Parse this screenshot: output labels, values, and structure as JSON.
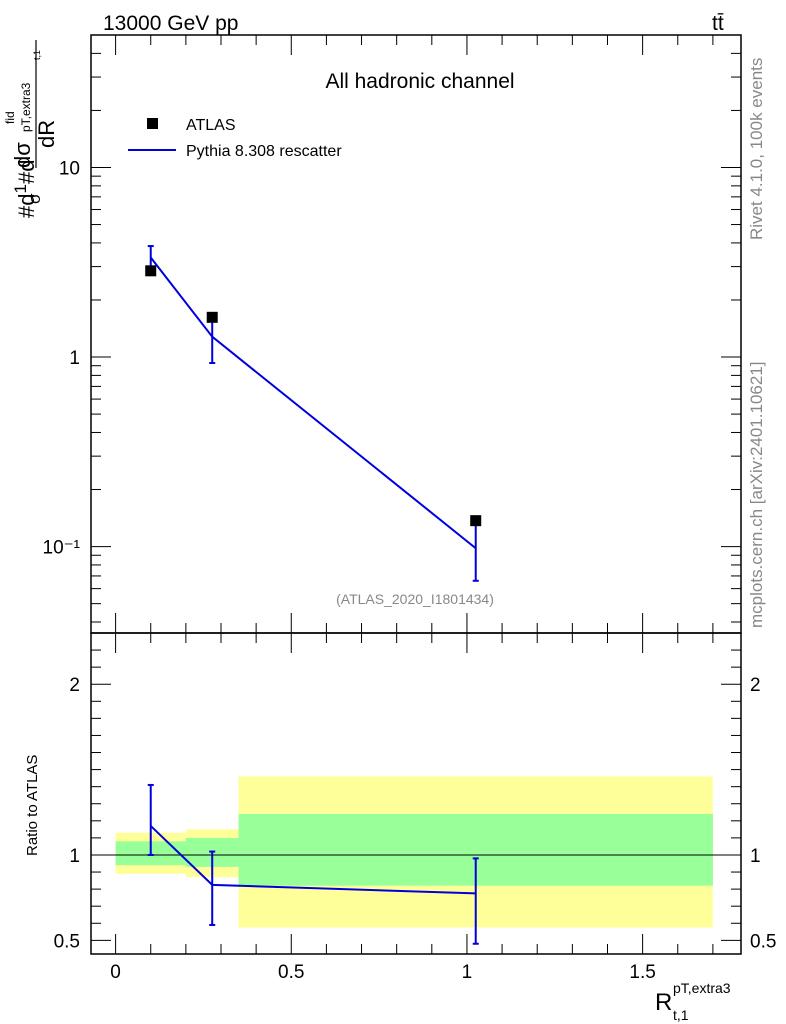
{
  "header": {
    "energy_label": "13000 GeV pp",
    "process_label": "tt̄"
  },
  "side_text": {
    "generator_info": "Rivet 4.1.0,  100k events",
    "site_info": "mcplots.cern.ch [arXiv:2401.10621]"
  },
  "chart_data": [
    {
      "panel": "main",
      "type": "line",
      "title": "All hadronic channel",
      "analysis_id": "(ATLAS_2020_I1801434)",
      "ylabel": "#d¹/σ#d dσ fid / p T,extra3 t,1 dR",
      "yscale": "log",
      "ylim": [
        0.035,
        50
      ],
      "xlim": [
        -0.07,
        1.78
      ],
      "y_tick_labels": [
        "10",
        "1",
        "10⁻¹"
      ],
      "legend": {
        "placement": "top-left",
        "entries": [
          "ATLAS",
          "Pythia 8.308 rescatter"
        ]
      },
      "series": [
        {
          "name": "ATLAS",
          "style": "markers",
          "color": "#000000",
          "x": [
            0.1,
            0.275,
            1.025
          ],
          "y": [
            2.85,
            1.62,
            0.137
          ]
        },
        {
          "name": "Pythia 8.308 rescatter",
          "style": "line",
          "color": "#0000dd",
          "x": [
            0.1,
            0.275,
            1.025
          ],
          "y": [
            3.35,
            1.28,
            0.098
          ],
          "err_lo": [
            2.85,
            0.93,
            0.066
          ],
          "err_hi": [
            3.85,
            1.6,
            0.13
          ]
        }
      ]
    },
    {
      "panel": "ratio",
      "type": "line",
      "ylabel": "Ratio to ATLAS",
      "xlabel": "R",
      "xlabel_sup": "pT,extra3",
      "xlabel_sub": "t,1",
      "ylim": [
        0.42,
        2.3
      ],
      "xlim": [
        -0.07,
        1.78
      ],
      "x_ticks": [
        0,
        0.5,
        1,
        1.5
      ],
      "x_tick_labels": [
        "0",
        "0.5",
        "1",
        "1.5"
      ],
      "y_ticks": [
        0.5,
        1,
        2
      ],
      "y_tick_labels": [
        "0.5",
        "1",
        "2"
      ],
      "bins": [
        {
          "x_lo": 0.0,
          "x_hi": 0.2,
          "yellow": [
            0.89,
            1.13
          ],
          "green": [
            0.94,
            1.08
          ]
        },
        {
          "x_lo": 0.2,
          "x_hi": 0.35,
          "yellow": [
            0.87,
            1.15
          ],
          "green": [
            0.93,
            1.1
          ]
        },
        {
          "x_lo": 0.35,
          "x_hi": 1.7,
          "yellow": [
            0.575,
            1.46
          ],
          "green": [
            0.82,
            1.24
          ]
        }
      ],
      "series": [
        {
          "name": "Pythia 8.308 rescatter",
          "color": "#0000dd",
          "x": [
            0.1,
            0.275,
            1.025
          ],
          "y": [
            1.17,
            0.825,
            0.775
          ],
          "err_lo": [
            1.0,
            0.59,
            0.48
          ],
          "err_hi": [
            1.41,
            1.02,
            0.98
          ]
        }
      ]
    }
  ]
}
